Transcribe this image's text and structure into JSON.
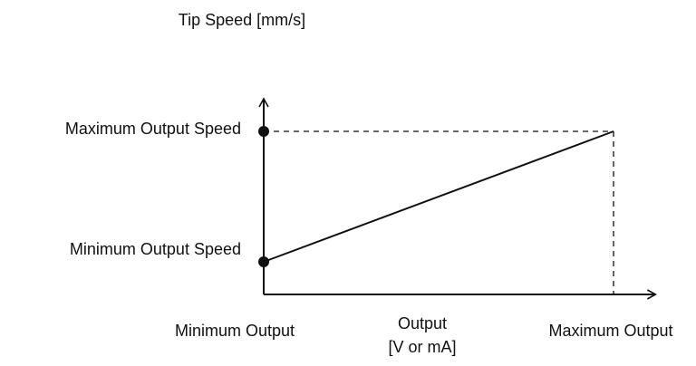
{
  "chart_data": {
    "type": "line",
    "title": "",
    "ylabel": "Tip Speed [mm/s]",
    "xlabel_lines": [
      "Output",
      "[V or mA]"
    ],
    "x_tick_labels": [
      "Minimum Output",
      "Maximum Output"
    ],
    "y_tick_labels": [
      "Minimum Output Speed",
      "Maximum Output Speed"
    ],
    "x": [
      0,
      1
    ],
    "y": [
      0.2,
      1
    ],
    "xlim": [
      0,
      1.12
    ],
    "ylim": [
      0,
      1.2
    ],
    "grid": false,
    "line_color": "#111111",
    "guide_style": "dashed"
  }
}
